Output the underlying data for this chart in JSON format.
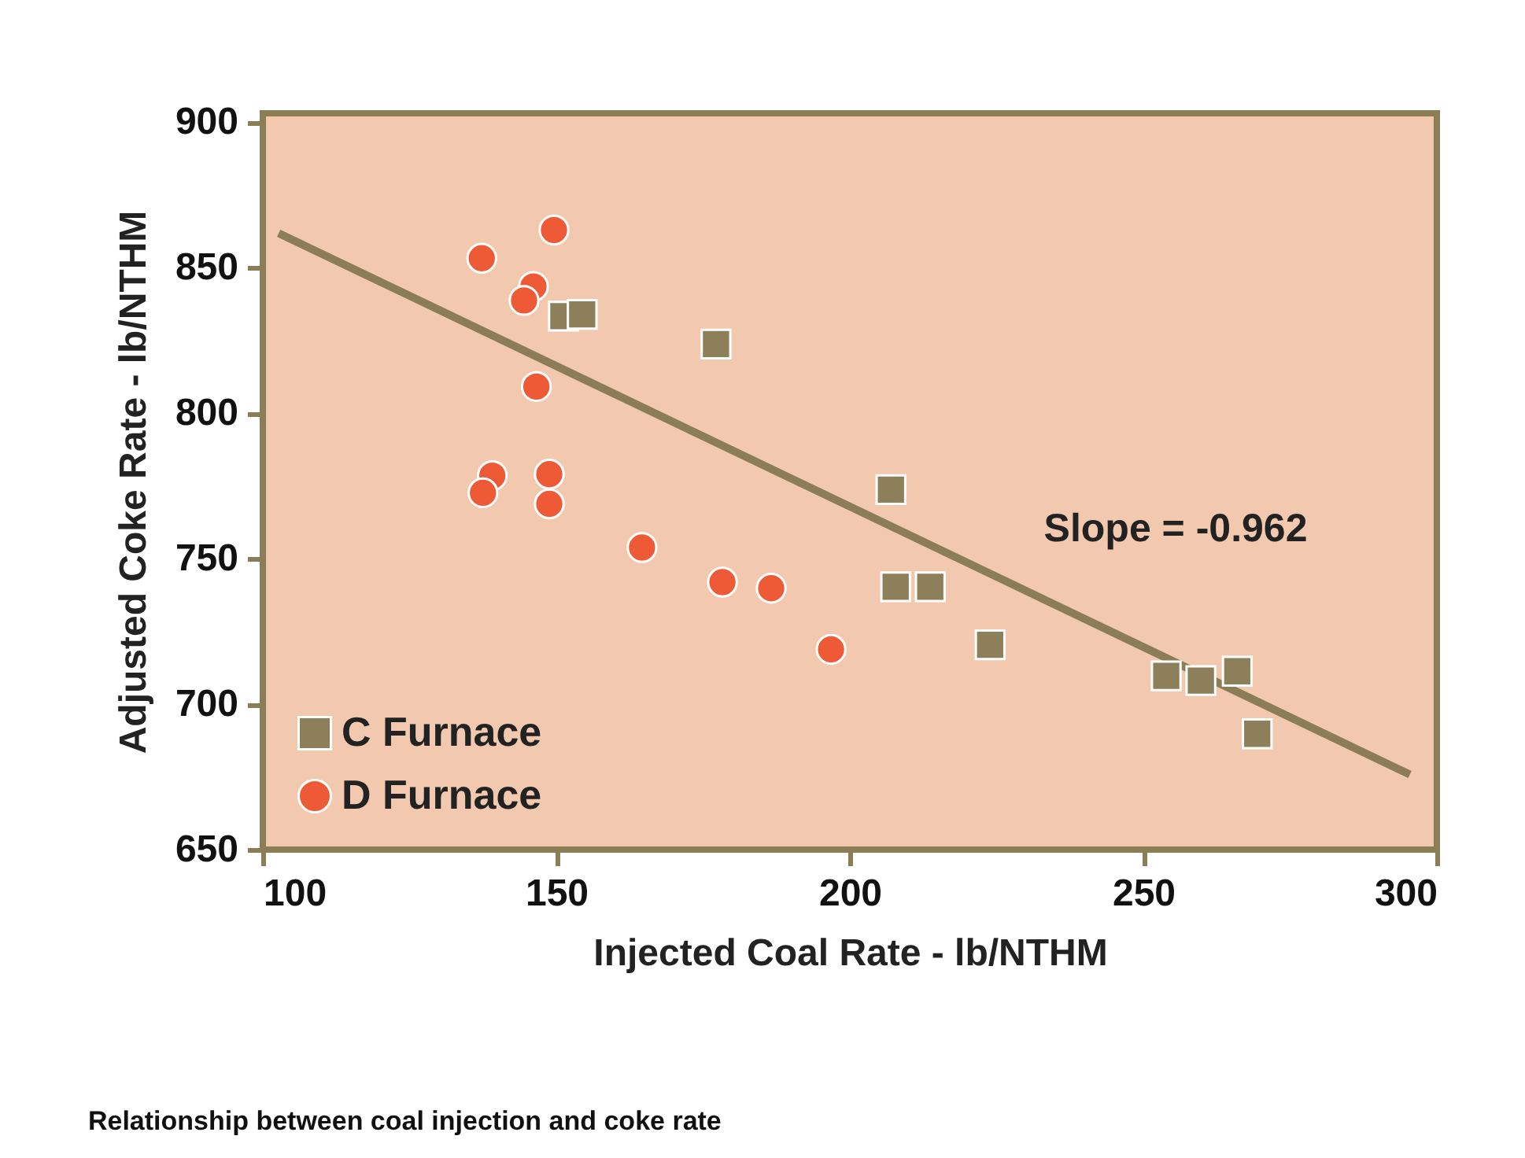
{
  "chart_data": {
    "type": "scatter",
    "xlabel": "Injected Coal Rate - lb/NTHM",
    "ylabel": "Adjusted Coke Rate - lb/NTHM",
    "xlim": [
      100,
      300
    ],
    "ylim": [
      650,
      903
    ],
    "xticks": [
      100,
      150,
      200,
      250,
      300
    ],
    "yticks": [
      650,
      700,
      750,
      800,
      850,
      900
    ],
    "grid": false,
    "legend": "bottom left",
    "series": [
      {
        "name": "C Furnace",
        "color": "#8c7f5a",
        "marker": "square",
        "x": [
          151.2,
          154.4,
          177.2,
          207.0,
          207.8,
          213.7,
          223.9,
          253.9,
          259.8,
          266.0,
          269.4
        ],
        "values": [
          833.3,
          833.9,
          823.7,
          773.7,
          740.3,
          740.3,
          720.4,
          709.7,
          708.1,
          711.3,
          689.8
        ]
      },
      {
        "name": "D Furnace",
        "color": "#ee5a35",
        "marker": "circle",
        "x": [
          137.3,
          149.6,
          146.1,
          144.5,
          146.6,
          139.1,
          137.5,
          148.8,
          148.8,
          164.6,
          178.3,
          186.6,
          196.8
        ],
        "values": [
          853.2,
          862.9,
          843.5,
          838.7,
          809.1,
          778.5,
          772.6,
          779.0,
          768.8,
          753.8,
          741.9,
          739.8,
          718.8
        ]
      },
      {
        "type": "line",
        "color": "#8b7d55",
        "marker": "none",
        "x": [
          102.7,
          295.4
        ],
        "values": [
          861.8,
          675.8
        ]
      }
    ],
    "annotations": [
      "Slope = -0.962",
      "Relationship between coal injection and coke rate"
    ]
  }
}
